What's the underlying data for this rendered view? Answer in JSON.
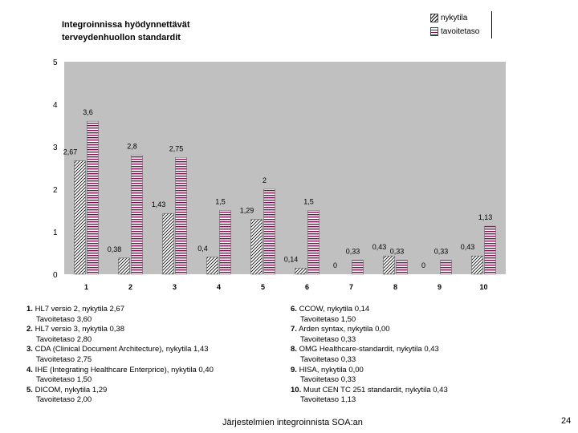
{
  "chart_data": {
    "type": "bar",
    "title_lines": [
      "Integroinnissa hyödynnettävät",
      "terveydenhuollon standardit"
    ],
    "categories": [
      "1",
      "2",
      "3",
      "4",
      "5",
      "6",
      "7",
      "8",
      "9",
      "10"
    ],
    "series": [
      {
        "name": "nykytila",
        "values": [
          2.67,
          0.38,
          1.43,
          0.4,
          1.29,
          0.14,
          0,
          0.43,
          0,
          0.43
        ],
        "labels": [
          "2,67",
          "0,38",
          "1,43",
          "0,4",
          "1,29",
          "0,14",
          "0",
          "0,43",
          "0",
          "0,43"
        ]
      },
      {
        "name": "tavoitetaso",
        "values": [
          3.6,
          2.8,
          2.75,
          1.5,
          2,
          1.5,
          0.33,
          0.33,
          0.33,
          1.13
        ],
        "labels": [
          "3,6",
          "2,8",
          "2,75",
          "1,5",
          "2",
          "1,5",
          "0,33",
          "0,33",
          "0,33",
          "1,13"
        ]
      }
    ],
    "ylim": [
      0,
      5
    ],
    "yticks": [
      "0",
      "1",
      "2",
      "3",
      "4",
      "5"
    ],
    "grid": false,
    "legend_position": "top-right",
    "colors": {
      "plot_bg": "#c0c0c0",
      "nykytila": "#000000",
      "tavoitetaso": "#7a1050"
    }
  },
  "legend": {
    "items": [
      {
        "label": "nykytila"
      },
      {
        "label": "tavoitetaso"
      }
    ]
  },
  "descriptions": {
    "left": [
      {
        "num": "1.",
        "line1": "HL7 versio 2, nykytila 2,67",
        "line2": "Tavoitetaso 3,60"
      },
      {
        "num": "2.",
        "line1": "HL7 versio 3, nykytila 0,38",
        "line2": "Tavoitetaso 2,80"
      },
      {
        "num": "3.",
        "line1": "CDA (Clinical Document Architecture), nykytila 1,43",
        "line2": "Tavoitetaso 2,75"
      },
      {
        "num": "4.",
        "line1": "IHE (Integrating Healthcare Enterprice), nykytila 0,40",
        "line2": "Tavoitetaso 1,50"
      },
      {
        "num": "5.",
        "line1": "DICOM, nykytila 1,29",
        "line2": "Tavoitetaso 2,00"
      }
    ],
    "right": [
      {
        "num": "6.",
        "line1": "CCOW, nykytila 0,14",
        "line2": "Tavoitetaso 1,50"
      },
      {
        "num": "7.",
        "line1": "Arden syntax, nykytila 0,00",
        "line2": "Tavoitetaso 0,33"
      },
      {
        "num": "8.",
        "line1": "OMG Healthcare-standardit, nykytila 0,43",
        "line2": "Tavoitetaso 0,33"
      },
      {
        "num": "9.",
        "line1": "HISA, nykytila 0,00",
        "line2": "Tavoitetaso 0,33"
      },
      {
        "num": "10.",
        "line1": "Muut CEN TC 251 standardit, nykytila 0,43",
        "line2": "Tavoitetaso 1,13"
      }
    ]
  },
  "footer": {
    "text": "Järjestelmien integroinnista SOA:an",
    "page_number": "24"
  }
}
